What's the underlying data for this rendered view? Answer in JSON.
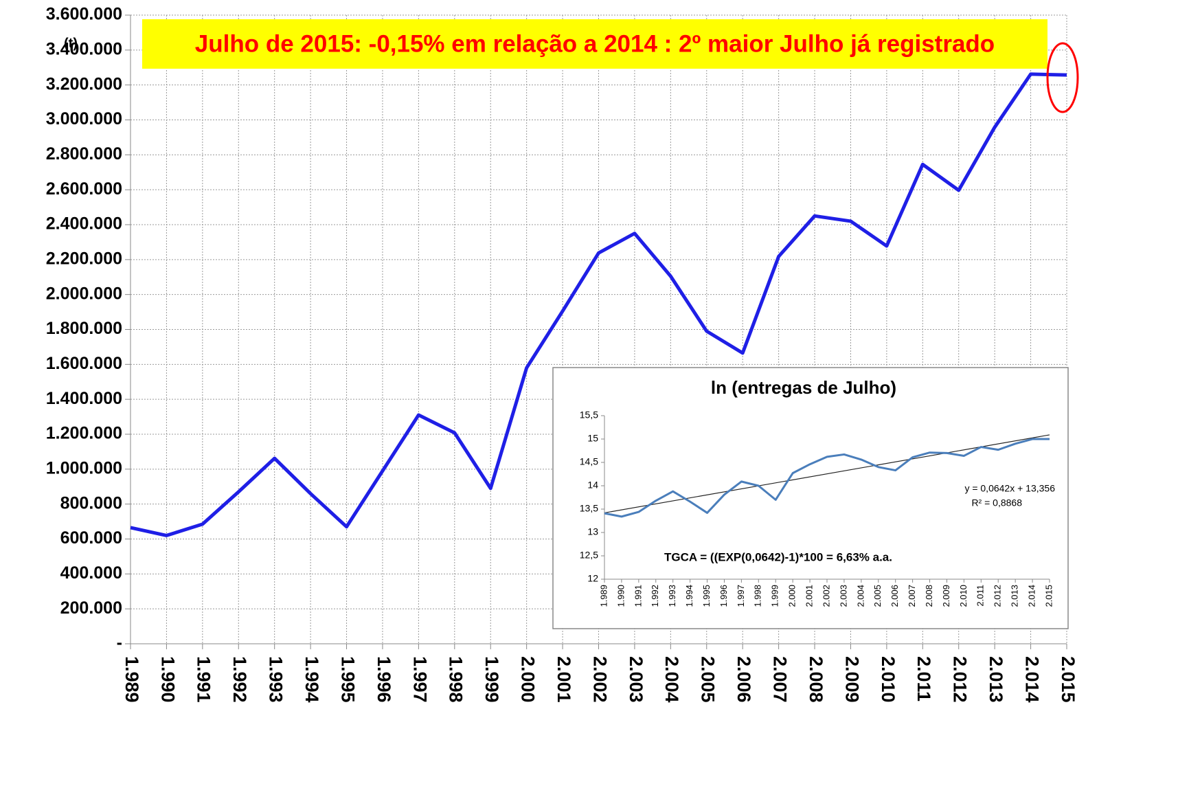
{
  "chart_data": [
    {
      "type": "line",
      "annotation": "Julho de 2015: -0,15% em relação a 2014 : 2º maior Julho já registrado",
      "y_label": "(t)",
      "categories": [
        "1.989",
        "1.990",
        "1.991",
        "1.992",
        "1.993",
        "1.994",
        "1.995",
        "1.996",
        "1.997",
        "1.998",
        "1.999",
        "2.000",
        "2.001",
        "2.002",
        "2.003",
        "2.004",
        "2.005",
        "2.006",
        "2.007",
        "2.008",
        "2.009",
        "2.010",
        "2.011",
        "2.012",
        "2.013",
        "2.014",
        "2.015"
      ],
      "values": [
        665000,
        620000,
        685000,
        870000,
        1062000,
        860000,
        670000,
        990000,
        1310000,
        1208000,
        890000,
        1580000,
        1905000,
        2238000,
        2350000,
        2105000,
        1790000,
        1665000,
        2218000,
        2450000,
        2420000,
        2278000,
        2745000,
        2597000,
        2958000,
        3262000,
        3257000
      ],
      "color": "#1f1fe6",
      "ylim": [
        0,
        3600000
      ],
      "yticks": [
        {
          "value": 0,
          "label": "-"
        },
        {
          "value": 200000,
          "label": "200.000"
        },
        {
          "value": 400000,
          "label": "400.000"
        },
        {
          "value": 600000,
          "label": "600.000"
        },
        {
          "value": 800000,
          "label": "800.000"
        },
        {
          "value": 1000000,
          "label": "1.000.000"
        },
        {
          "value": 1200000,
          "label": "1.200.000"
        },
        {
          "value": 1400000,
          "label": "1.400.000"
        },
        {
          "value": 1600000,
          "label": "1.600.000"
        },
        {
          "value": 1800000,
          "label": "1.800.000"
        },
        {
          "value": 2000000,
          "label": "2.000.000"
        },
        {
          "value": 2200000,
          "label": "2.200.000"
        },
        {
          "value": 2400000,
          "label": "2.400.000"
        },
        {
          "value": 2600000,
          "label": "2.600.000"
        },
        {
          "value": 2800000,
          "label": "2.800.000"
        },
        {
          "value": 3000000,
          "label": "3.000.000"
        },
        {
          "value": 3200000,
          "label": "3.200.000"
        },
        {
          "value": 3400000,
          "label": "3.400.000"
        },
        {
          "value": 3600000,
          "label": "3.600.000"
        }
      ],
      "grid": true
    },
    {
      "type": "line",
      "title": "ln (entregas de Julho)",
      "categories": [
        "1.989",
        "1.990",
        "1.991",
        "1.992",
        "1.993",
        "1.994",
        "1.995",
        "1.996",
        "1.997",
        "1.998",
        "1.999",
        "2.000",
        "2.001",
        "2.002",
        "2.003",
        "2.004",
        "2.005",
        "2.006",
        "2.007",
        "2.008",
        "2.009",
        "2.010",
        "2.011",
        "2.012",
        "2.013",
        "2.014",
        "2.015"
      ],
      "values": [
        13.41,
        13.34,
        13.44,
        13.68,
        13.88,
        13.66,
        13.42,
        13.81,
        14.09,
        14.0,
        13.7,
        14.27,
        14.46,
        14.62,
        14.67,
        14.56,
        14.4,
        14.33,
        14.61,
        14.71,
        14.7,
        14.64,
        14.83,
        14.77,
        14.9,
        15.0,
        15.0
      ],
      "color": "#4a7ebb",
      "ylim": [
        12,
        15.5
      ],
      "yticks": [
        12,
        {
          "value": 12.5,
          "label": "12,5"
        },
        13,
        {
          "value": 13.5,
          "label": "13,5"
        },
        14,
        {
          "value": 14.5,
          "label": "14,5"
        },
        15,
        {
          "value": 15.5,
          "label": "15,5"
        }
      ],
      "grid": false,
      "trendline": {
        "slope": 0.0642,
        "intercept": 13.356,
        "color": "#222222"
      },
      "equation": "y = 0,0642x + 13,356",
      "r_squared": "R² = 0,8868",
      "annotation": "TGCA = ((EXP(0,0642)-1)*100 = 6,63% a.a."
    }
  ]
}
